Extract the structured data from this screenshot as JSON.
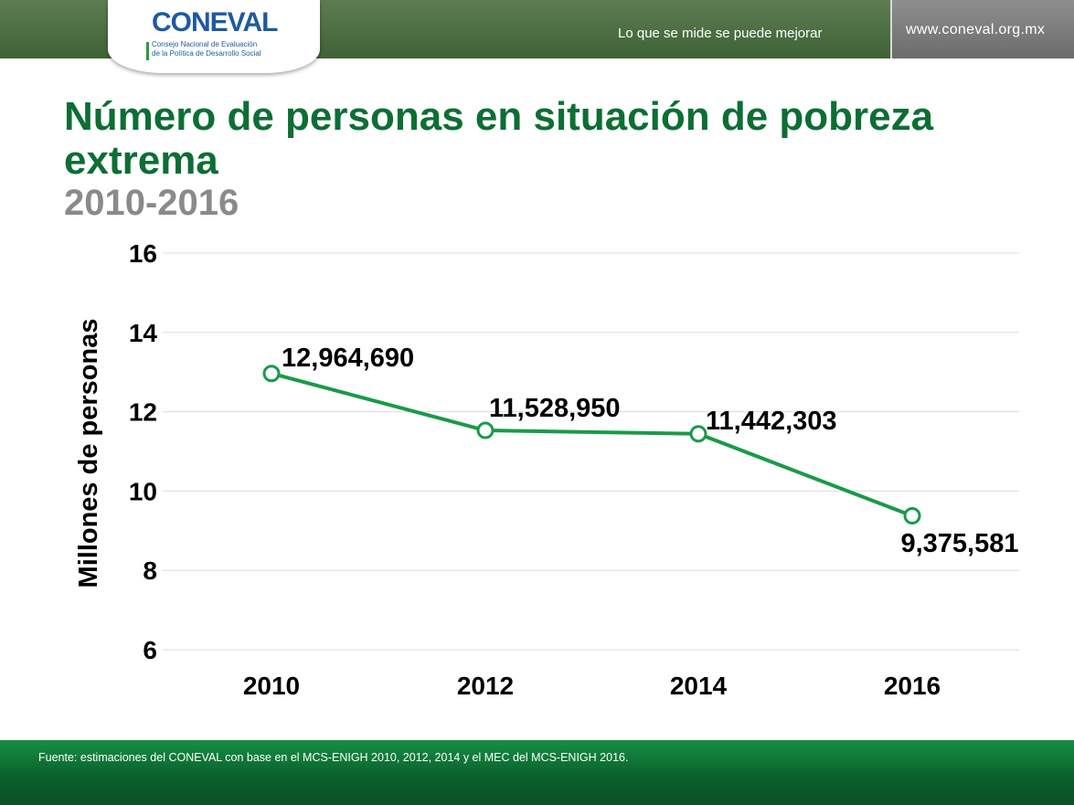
{
  "header": {
    "logo_word": "CONEVAL",
    "logo_subtitle_line1": "Consejo Nacional de Evaluación",
    "logo_subtitle_line2": "de la Política de Desarrollo Social",
    "tagline": "Lo que se mide se puede mejorar",
    "url": "www.coneval.org.mx"
  },
  "slide": {
    "title": "Número de personas en situación de pobreza extrema",
    "subtitle": "2010-2016"
  },
  "chart_data": {
    "type": "line",
    "title": "Número de personas en situación de pobreza extrema",
    "xlabel": "",
    "ylabel": "Millones de personas",
    "categories": [
      "2010",
      "2012",
      "2014",
      "2016"
    ],
    "values": [
      12.96469,
      11.52895,
      11.442303,
      9.375581
    ],
    "data_labels": [
      "12,964,690",
      "11,528,950",
      "11,442,303",
      "9,375,581"
    ],
    "yticks": [
      "6",
      "8",
      "10",
      "12",
      "14",
      "16"
    ],
    "ylim": [
      6,
      16
    ],
    "grid": true,
    "line_color": "#1a9a48"
  },
  "footer": {
    "source": "Fuente: estimaciones del CONEVAL con base en el MCS-ENIGH 2010, 2012, 2014 y el MEC del MCS-ENIGH 2016."
  }
}
